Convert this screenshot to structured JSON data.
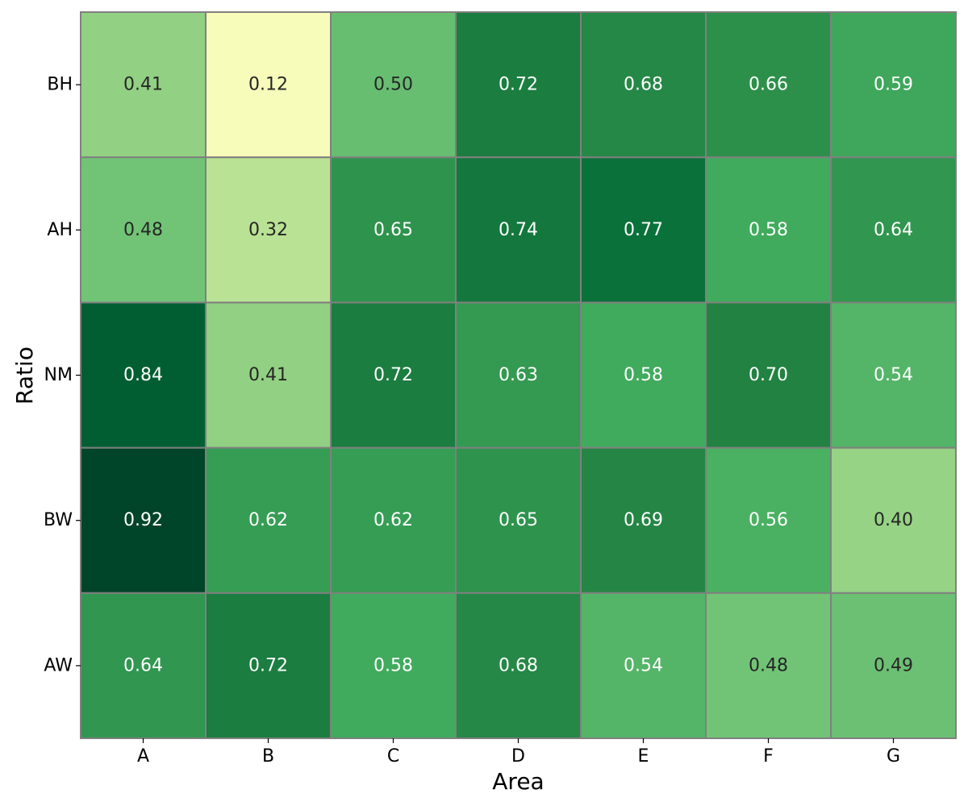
{
  "chart_data": {
    "type": "heatmap",
    "title": "",
    "xlabel": "Area",
    "ylabel": "Ratio",
    "x_categories": [
      "A",
      "B",
      "C",
      "D",
      "E",
      "F",
      "G"
    ],
    "y_categories": [
      "BH",
      "AH",
      "NM",
      "BW",
      "AW"
    ],
    "values": [
      [
        0.41,
        0.12,
        0.5,
        0.72,
        0.68,
        0.66,
        0.59
      ],
      [
        0.48,
        0.32,
        0.65,
        0.74,
        0.77,
        0.58,
        0.64
      ],
      [
        0.84,
        0.41,
        0.72,
        0.63,
        0.58,
        0.7,
        0.54
      ],
      [
        0.92,
        0.62,
        0.62,
        0.65,
        0.69,
        0.56,
        0.4
      ],
      [
        0.64,
        0.72,
        0.58,
        0.68,
        0.54,
        0.48,
        0.49
      ]
    ],
    "value_format": "2 decimals",
    "colormap": "YlGn",
    "color_range": [
      0.12,
      0.92
    ],
    "cell_border_color": "#808080",
    "light_text_color": "#ffffff",
    "dark_text_color": "#262626",
    "grid": false,
    "legend": "none"
  }
}
